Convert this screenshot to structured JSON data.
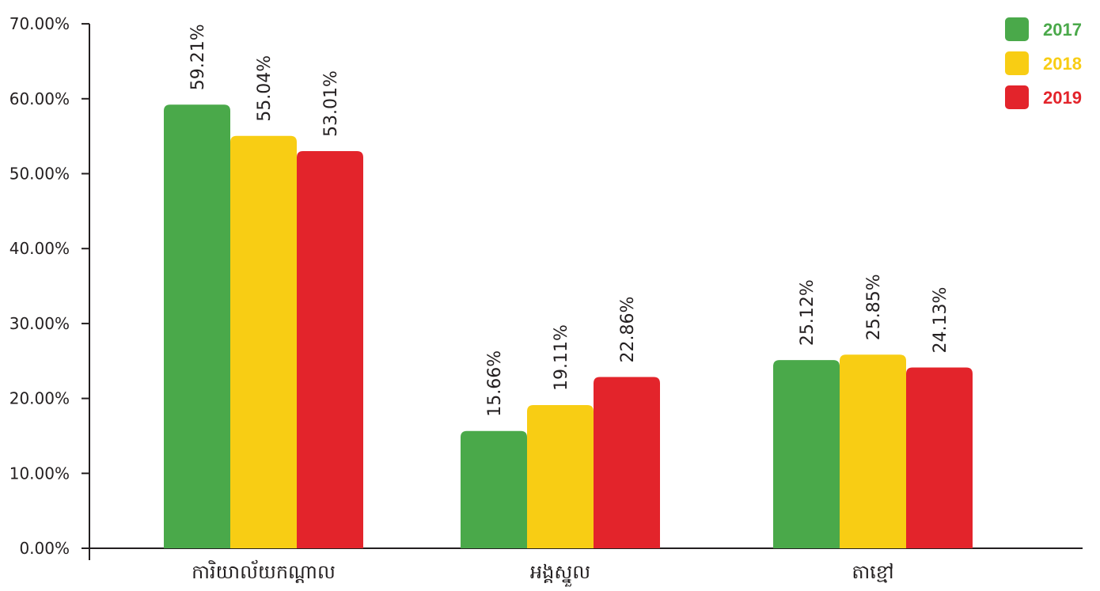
{
  "chart_data": {
    "type": "bar",
    "title": "",
    "xlabel": "",
    "ylabel": "",
    "ylim": [
      0,
      70
    ],
    "y_ticks": [
      "0.00%",
      "10.00%",
      "20.00%",
      "30.00%",
      "40.00%",
      "50.00%",
      "60.00%",
      "70.00%"
    ],
    "categories": [
      "ការិយាល័យកណ្តាល",
      "អង្គស្នួល",
      "តាខ្មៅ"
    ],
    "series": [
      {
        "name": "2017",
        "color": "#4aa94a",
        "values": [
          59.21,
          15.66,
          25.12
        ],
        "labels": [
          "59.21%",
          "15.66%",
          "25.12%"
        ]
      },
      {
        "name": "2018",
        "color": "#f8cd14",
        "values": [
          55.04,
          19.11,
          25.85
        ],
        "labels": [
          "55.04%",
          "19.11%",
          "25.85%"
        ]
      },
      {
        "name": "2019",
        "color": "#e3242b",
        "values": [
          53.01,
          22.86,
          24.13
        ],
        "labels": [
          "53.01%",
          "22.86%",
          "24.13%"
        ]
      }
    ],
    "legend_position": "top-right",
    "grid": false
  }
}
